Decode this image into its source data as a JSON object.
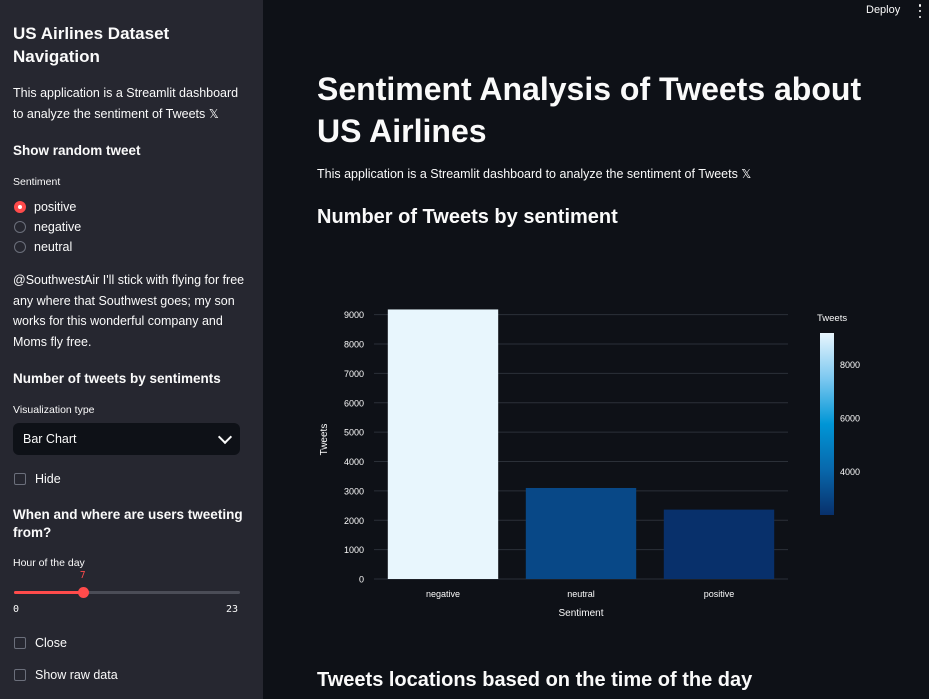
{
  "sidebar": {
    "title": "US Airlines Dataset Navigation",
    "description": "This application is a Streamlit dashboard to analyze the sentiment of Tweets 𝕏",
    "random_tweet_header": "Show random tweet",
    "sentiment_label": "Sentiment",
    "sentiment_options": [
      {
        "label": "positive",
        "selected": true
      },
      {
        "label": "negative",
        "selected": false
      },
      {
        "label": "neutral",
        "selected": false
      }
    ],
    "random_tweet_text": "@SouthwestAir I'll stick with flying for free any where that Southwest goes; my son works for this wonderful company and Moms fly free.",
    "tweets_by_sentiment_header": "Number of tweets by sentiments",
    "viz_type_label": "Visualization type",
    "viz_type_value": "Bar Chart",
    "hide_label": "Hide",
    "when_where_header": "When and where are users tweeting from?",
    "hour_label": "Hour of the day",
    "hour_slider": {
      "value": 7,
      "min": 0,
      "max": 23,
      "min_label": "0",
      "max_label": "23",
      "value_label": "7"
    },
    "close_label": "Close",
    "raw_data_label": "Show raw data"
  },
  "header": {
    "deploy_label": "Deploy",
    "menu_icon": "kebab-menu-icon"
  },
  "main": {
    "title": "Sentiment Analysis of Tweets about US Airlines",
    "description": "This application is a Streamlit dashboard to analyze the sentiment of Tweets 𝕏",
    "chart_header": "Number of Tweets by sentiment",
    "locations_header": "Tweets locations based on the time of the day"
  },
  "colors": {
    "accent": "#ff4b4b",
    "sidebar_bg": "#262730",
    "main_bg": "#0e1117"
  },
  "chart_data": {
    "type": "bar",
    "categories": [
      "negative",
      "neutral",
      "positive"
    ],
    "values": [
      9178,
      3099,
      2363
    ],
    "xlabel": "Sentiment",
    "ylabel": "Tweets",
    "ylim": [
      0,
      9500
    ],
    "yticks": [
      0,
      1000,
      2000,
      3000,
      4000,
      5000,
      6000,
      7000,
      8000,
      9000
    ],
    "grid": true,
    "colorbar": {
      "title": "Tweets",
      "range": [
        2363,
        9178
      ],
      "ticks": [
        4000,
        6000,
        8000
      ],
      "colors": [
        "#08306b",
        "#0868ac",
        "#0096d6",
        "#7cc8f0",
        "#e8f6fd"
      ]
    }
  }
}
